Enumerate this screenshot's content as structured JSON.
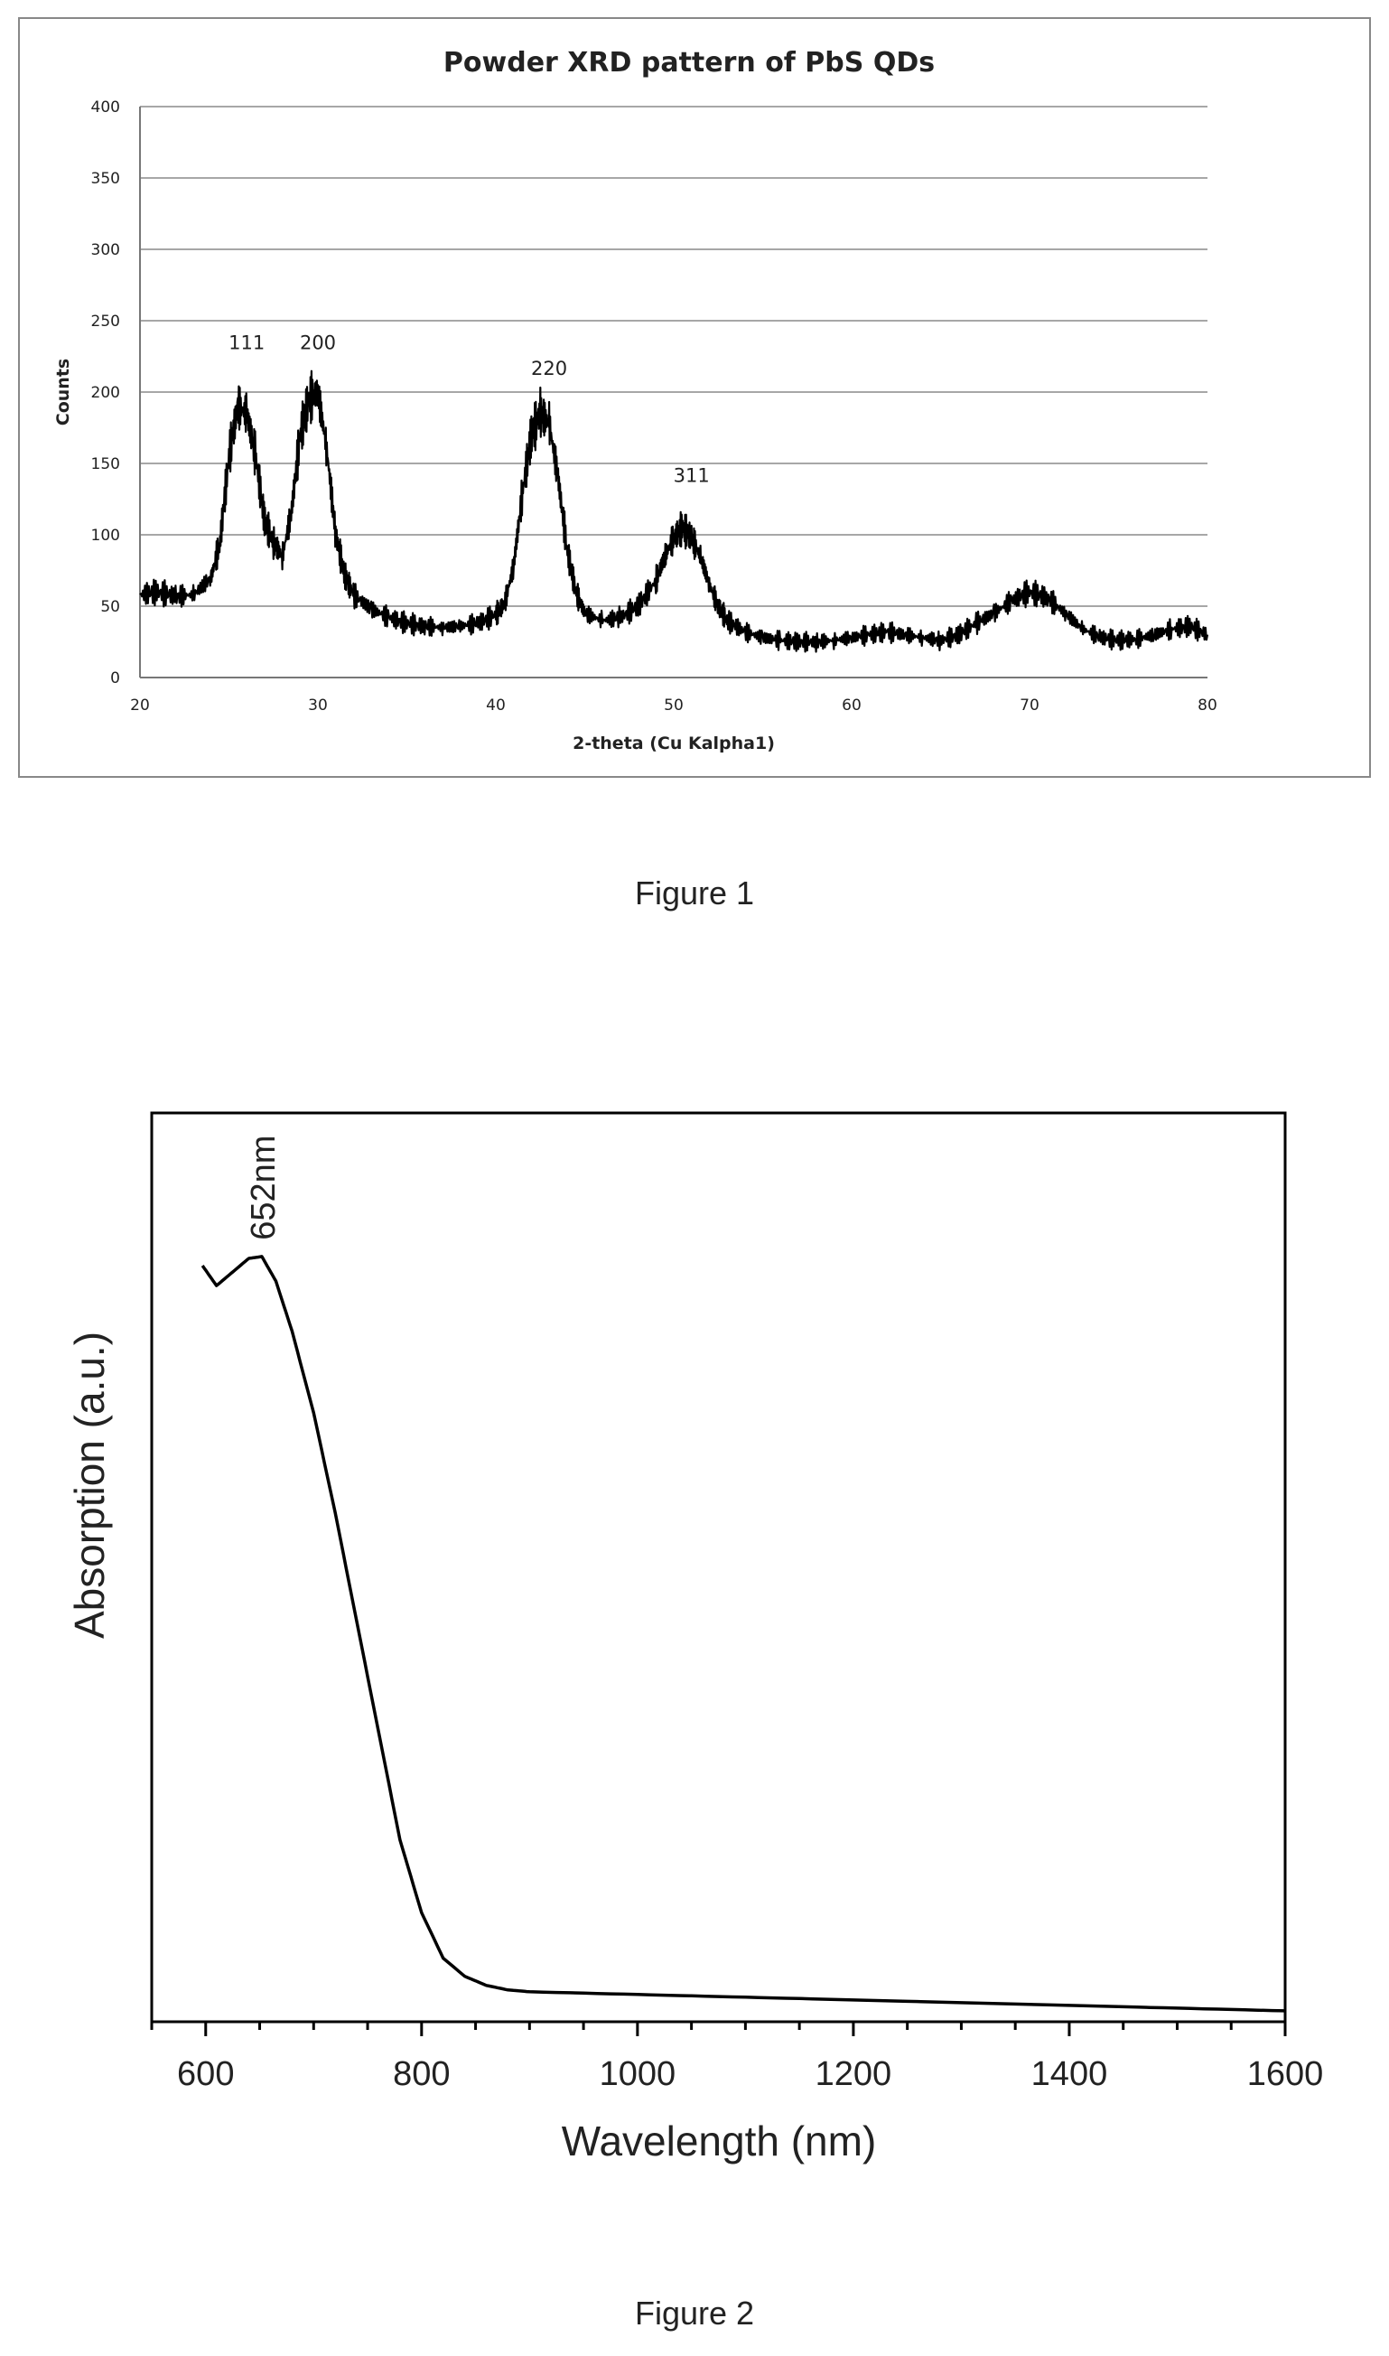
{
  "figures": [
    {
      "caption": "Figure 1"
    },
    {
      "caption": "Figure 2"
    }
  ],
  "chart_data": [
    {
      "type": "line",
      "title": "Powder XRD pattern of PbS QDs",
      "xlabel": "2-theta (Cu Kalpha1)",
      "ylabel": "Counts",
      "xlim": [
        20,
        80
      ],
      "ylim": [
        0,
        400
      ],
      "xticks": [
        20,
        30,
        40,
        50,
        60,
        70,
        80
      ],
      "yticks": [
        0,
        50,
        100,
        150,
        200,
        250,
        300,
        350,
        400
      ],
      "grid": true,
      "legend": "none",
      "line_color": "#000000",
      "series": [
        {
          "x": [
            20,
            21,
            22,
            23,
            24,
            24.5,
            25,
            25.5,
            26,
            26.5,
            27,
            27.5,
            28,
            28.5,
            29,
            29.5,
            30,
            30.5,
            31,
            31.5,
            32,
            33,
            34,
            35,
            36,
            37,
            38,
            39,
            40,
            40.5,
            41,
            41.5,
            42,
            42.5,
            43,
            43.5,
            44,
            44.5,
            45,
            46,
            47,
            48,
            49,
            49.5,
            50,
            50.5,
            51,
            51.5,
            52,
            52.5,
            53,
            54,
            55,
            56,
            57,
            58,
            59,
            60,
            61,
            62,
            63,
            64,
            65,
            66,
            67,
            68,
            69,
            70,
            71,
            72,
            73,
            74,
            75,
            76,
            77,
            78,
            79,
            80
          ],
          "y": [
            58,
            60,
            57,
            58,
            70,
            95,
            155,
            190,
            185,
            155,
            110,
            95,
            85,
            115,
            170,
            195,
            200,
            160,
            100,
            72,
            58,
            48,
            42,
            38,
            36,
            35,
            36,
            38,
            44,
            52,
            78,
            130,
            170,
            185,
            178,
            140,
            90,
            60,
            45,
            40,
            42,
            50,
            68,
            85,
            98,
            105,
            98,
            85,
            65,
            50,
            40,
            32,
            28,
            26,
            25,
            25,
            26,
            28,
            30,
            32,
            30,
            28,
            26,
            30,
            38,
            45,
            54,
            60,
            56,
            45,
            34,
            28,
            26,
            27,
            30,
            34,
            36,
            30
          ]
        }
      ],
      "annotations": [
        {
          "text": "111",
          "x": 26,
          "y": 230
        },
        {
          "text": "200",
          "x": 30,
          "y": 230
        },
        {
          "text": "220",
          "x": 43,
          "y": 212
        },
        {
          "text": "311",
          "x": 51,
          "y": 137
        }
      ]
    },
    {
      "type": "line",
      "title": "",
      "xlabel": "Wavelength (nm)",
      "ylabel": "Absorption (a.u.)",
      "xlim": [
        550,
        1600
      ],
      "ylim": [
        0,
        1
      ],
      "xticks": [
        600,
        800,
        1000,
        1200,
        1400,
        1600
      ],
      "xticks_minor_step": 50,
      "grid": false,
      "legend": "none",
      "line_color": "#000000",
      "series": [
        {
          "x": [
            597,
            610,
            625,
            640,
            652,
            665,
            680,
            700,
            720,
            740,
            760,
            780,
            800,
            820,
            840,
            860,
            880,
            900,
            1000,
            1100,
            1200,
            1300,
            1400,
            1500,
            1600
          ],
          "y": [
            0.832,
            0.81,
            0.825,
            0.84,
            0.842,
            0.815,
            0.76,
            0.67,
            0.56,
            0.44,
            0.32,
            0.2,
            0.12,
            0.07,
            0.05,
            0.04,
            0.035,
            0.033,
            0.03,
            0.027,
            0.024,
            0.021,
            0.018,
            0.015,
            0.012
          ]
        }
      ],
      "annotations": [
        {
          "text": "652nm",
          "x": 652,
          "y": 0.86
        }
      ]
    }
  ]
}
